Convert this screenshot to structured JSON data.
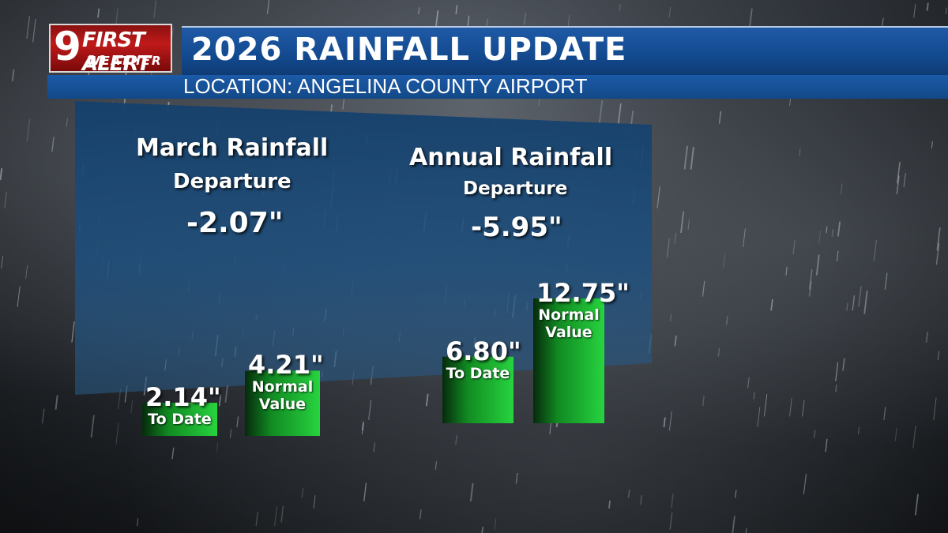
{
  "header": {
    "logo": {
      "number": "9",
      "brand": "FIRST ALERT",
      "sub": "WEATHER"
    },
    "title": "2026 RAINFALL UPDATE",
    "subtitle": "LOCATION:  ANGELINA COUNTY AIRPORT"
  },
  "colors": {
    "header_blue": "#134a8f",
    "panel_blue": "#1d4a7a",
    "bar_green": "#22c23a",
    "logo_red": "#c01a1a"
  },
  "chart_data": [
    {
      "type": "bar",
      "title": "March Rainfall",
      "subtitle": "Departure",
      "departure": "-2.07\"",
      "unit": "in",
      "categories": [
        "To Date",
        "Normal Value"
      ],
      "values": [
        2.14,
        4.21
      ],
      "value_labels": [
        "2.14\"",
        "4.21\""
      ]
    },
    {
      "type": "bar",
      "title": "Annual Rainfall",
      "subtitle": "Departure",
      "departure": "-5.95\"",
      "unit": "in",
      "categories": [
        "To Date",
        "Normal Value"
      ],
      "values": [
        6.8,
        12.75
      ],
      "value_labels": [
        "6.80\"",
        "12.75\""
      ]
    }
  ]
}
